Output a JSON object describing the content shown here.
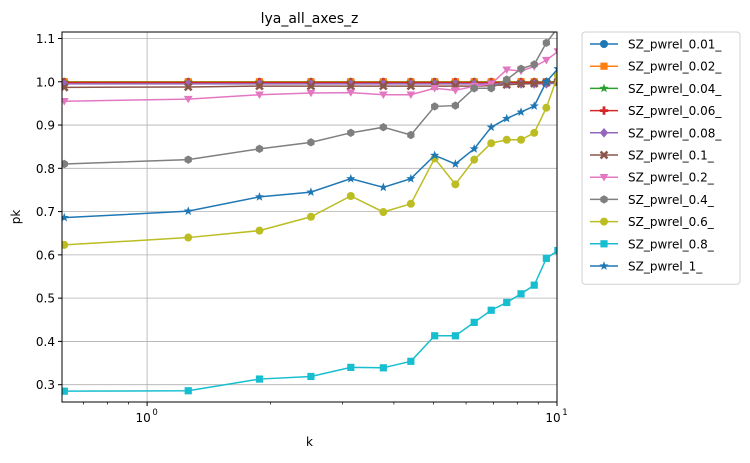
{
  "chart_data": {
    "type": "line",
    "title": "lya_all_axes_z",
    "xlabel": "k",
    "ylabel": "pk",
    "xscale": "log",
    "xlim": [
      0.62,
      10.0
    ],
    "ylim": [
      0.26,
      1.115
    ],
    "grid": true,
    "legend_position": "outside-right",
    "x_ticks": [
      {
        "value": 1,
        "label": "10",
        "exp": "0"
      },
      {
        "value": 10,
        "label": "10",
        "exp": "1"
      }
    ],
    "y_ticks": [
      0.3,
      0.4,
      0.5,
      0.6,
      0.7,
      0.8,
      0.9,
      1.0,
      1.1
    ],
    "y_tick_labels": [
      "0.3",
      "0.4",
      "0.5",
      "0.6",
      "0.7",
      "0.8",
      "0.9",
      "1.0",
      "1.1"
    ],
    "x": [
      0.628,
      1.26,
      1.88,
      2.51,
      3.14,
      3.77,
      4.4,
      5.03,
      5.65,
      6.28,
      6.91,
      7.54,
      8.17,
      8.8,
      9.42,
      10.05
    ],
    "series": [
      {
        "name": "SZ_pwrel_0.01_",
        "color": "#1f77b4",
        "marker": "o",
        "values": [
          1.0,
          1.0,
          1.0,
          1.0,
          1.0,
          1.0,
          1.0,
          1.0,
          1.0,
          1.0,
          1.0,
          1.0,
          1.0,
          1.0,
          1.0,
          1.0
        ]
      },
      {
        "name": "SZ_pwrel_0.02_",
        "color": "#ff7f0e",
        "marker": "s",
        "values": [
          1.0,
          1.0,
          1.0,
          1.0,
          1.0,
          1.0,
          1.0,
          1.0,
          1.0,
          1.0,
          1.0,
          1.0,
          1.0,
          1.0,
          1.0,
          1.0
        ]
      },
      {
        "name": "SZ_pwrel_0.04_",
        "color": "#2ca02c",
        "marker": "*",
        "values": [
          0.999,
          0.999,
          0.999,
          0.999,
          0.999,
          0.999,
          0.999,
          0.999,
          0.999,
          0.999,
          0.999,
          0.999,
          0.999,
          0.999,
          0.999,
          1.0
        ]
      },
      {
        "name": "SZ_pwrel_0.06_",
        "color": "#d62728",
        "marker": "P",
        "values": [
          0.998,
          0.998,
          0.998,
          0.998,
          0.998,
          0.998,
          0.998,
          0.998,
          0.998,
          0.998,
          0.998,
          0.998,
          0.998,
          0.998,
          0.998,
          0.999
        ]
      },
      {
        "name": "SZ_pwrel_0.08_",
        "color": "#9467bd",
        "marker": "D",
        "values": [
          0.995,
          0.995,
          0.995,
          0.995,
          0.995,
          0.995,
          0.995,
          0.995,
          0.995,
          0.995,
          0.995,
          0.995,
          0.995,
          0.995,
          0.995,
          0.997
        ]
      },
      {
        "name": "SZ_pwrel_0.1_",
        "color": "#8c564b",
        "marker": "X",
        "values": [
          0.987,
          0.988,
          0.99,
          0.99,
          0.99,
          0.99,
          0.99,
          0.99,
          0.99,
          0.99,
          0.991,
          0.993,
          0.995,
          0.996,
          0.998,
          1.0
        ]
      },
      {
        "name": "SZ_pwrel_0.2_",
        "color": "#e377c2",
        "marker": "v",
        "values": [
          0.955,
          0.96,
          0.97,
          0.974,
          0.975,
          0.97,
          0.97,
          0.985,
          0.98,
          0.99,
          0.995,
          1.028,
          1.025,
          1.035,
          1.05,
          1.07
        ]
      },
      {
        "name": "SZ_pwrel_0.4_",
        "color": "#7f7f7f",
        "marker": "h",
        "values": [
          0.81,
          0.82,
          0.845,
          0.86,
          0.882,
          0.895,
          0.877,
          0.943,
          0.945,
          0.985,
          0.985,
          1.005,
          1.03,
          1.04,
          1.09,
          1.125
        ]
      },
      {
        "name": "SZ_pwrel_0.6_",
        "color": "#bcbd22",
        "marker": "o",
        "values": [
          0.623,
          0.64,
          0.656,
          0.688,
          0.736,
          0.699,
          0.718,
          0.823,
          0.763,
          0.82,
          0.858,
          0.866,
          0.866,
          0.882,
          0.94,
          1.015
        ]
      },
      {
        "name": "SZ_pwrel_0.8_",
        "color": "#17becf",
        "marker": "s",
        "values": [
          0.285,
          0.286,
          0.313,
          0.319,
          0.34,
          0.339,
          0.354,
          0.413,
          0.413,
          0.444,
          0.472,
          0.49,
          0.51,
          0.53,
          0.592,
          0.61
        ]
      },
      {
        "name": "SZ_pwrel_1_",
        "color": "#1f77b4",
        "marker": "*",
        "values": [
          0.686,
          0.701,
          0.734,
          0.745,
          0.776,
          0.756,
          0.776,
          0.83,
          0.81,
          0.845,
          0.895,
          0.915,
          0.93,
          0.944,
          1.0,
          1.03
        ]
      }
    ]
  }
}
